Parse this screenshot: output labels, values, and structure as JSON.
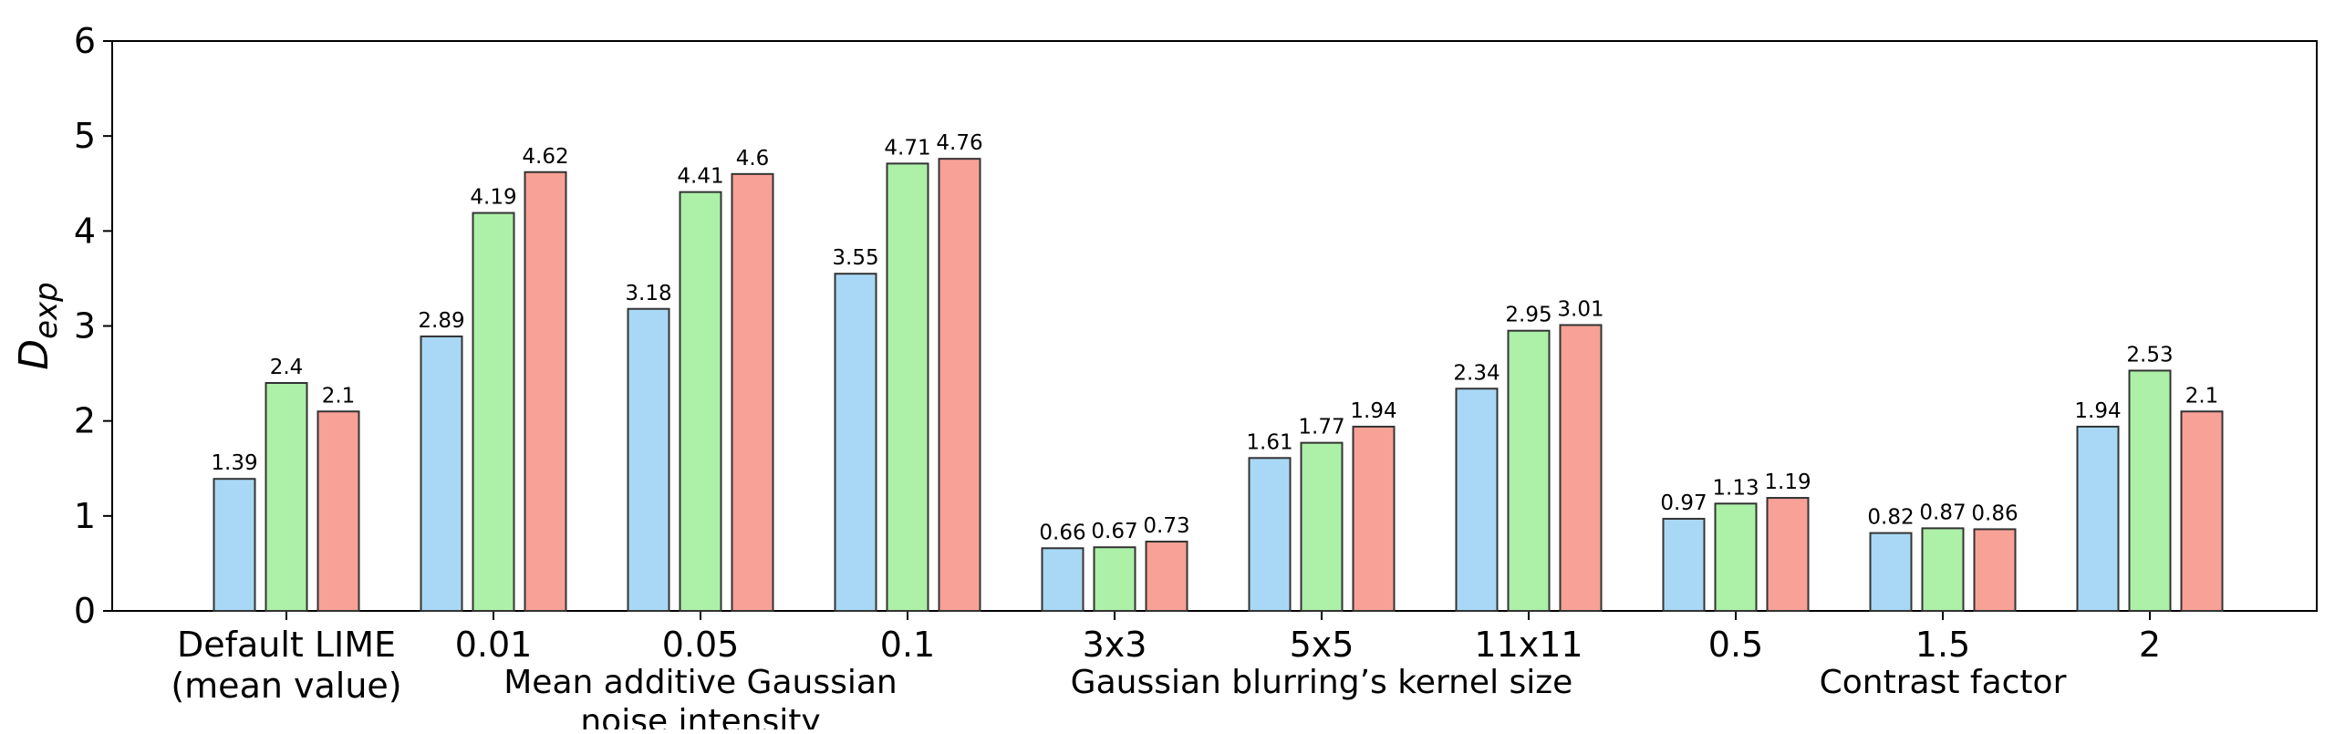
{
  "chart_data": {
    "type": "bar",
    "ylabel": "D",
    "ylabel_subscript": "exp",
    "ylim": [
      0,
      6
    ],
    "yticks": [
      "0",
      "1",
      "2",
      "3",
      "4",
      "5",
      "6"
    ],
    "categories": [
      [
        "Default LIME",
        "(mean value)"
      ],
      [
        "0.01"
      ],
      [
        "0.05"
      ],
      [
        "0.1"
      ],
      [
        "3x3"
      ],
      [
        "5x5"
      ],
      [
        "11x11"
      ],
      [
        "0.5"
      ],
      [
        "1.5"
      ],
      [
        "2"
      ]
    ],
    "series": [
      {
        "color": "#a8d8f5",
        "values": [
          1.39,
          2.89,
          3.18,
          3.55,
          0.66,
          1.61,
          2.34,
          0.97,
          0.82,
          1.94
        ]
      },
      {
        "color": "#adf0a8",
        "values": [
          2.4,
          4.19,
          4.41,
          4.71,
          0.67,
          1.77,
          2.95,
          1.13,
          0.87,
          2.53
        ]
      },
      {
        "color": "#f8a196",
        "values": [
          2.1,
          4.62,
          4.6,
          4.76,
          0.73,
          1.94,
          3.01,
          1.19,
          0.86,
          2.1
        ]
      }
    ],
    "data_labels": [
      [
        "1.39",
        "2.89",
        "3.18",
        "3.55",
        "0.66",
        "1.61",
        "2.34",
        "0.97",
        "0.82",
        "1.94"
      ],
      [
        "2.4",
        "4.19",
        "4.41",
        "4.71",
        "0.67",
        "1.77",
        "2.95",
        "1.13",
        "0.87",
        "2.53"
      ],
      [
        "2.1",
        "4.62",
        "4.6",
        "4.76",
        "0.73",
        "1.94",
        "3.01",
        "1.19",
        "0.86",
        "2.1"
      ]
    ],
    "group_labels": [
      {
        "lines": [
          "Mean additive Gaussian",
          "noise intensity"
        ],
        "span": [
          1,
          3
        ]
      },
      {
        "lines": [
          "Gaussian blurring’s kernel size"
        ],
        "span": [
          4,
          6
        ]
      },
      {
        "lines": [
          "Contrast factor"
        ],
        "span": [
          7,
          9
        ]
      }
    ],
    "grid": false,
    "edge_color": "#333333"
  }
}
